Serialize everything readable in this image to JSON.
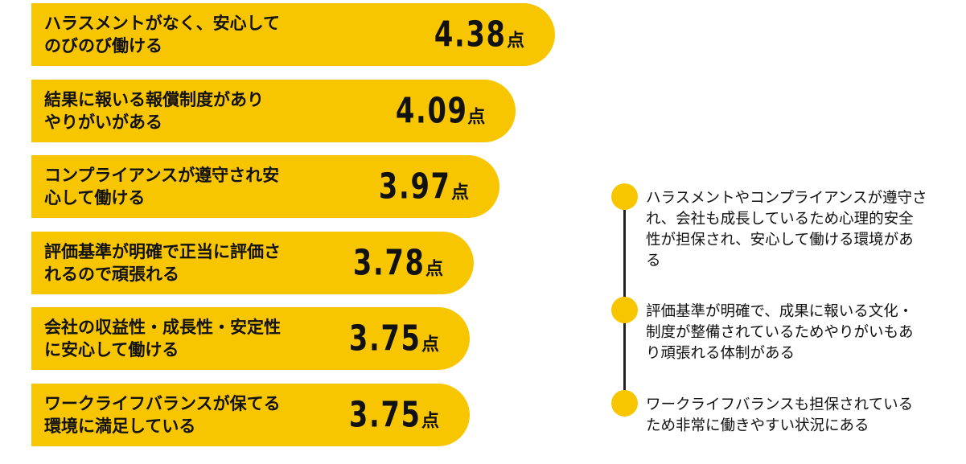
{
  "chart_data": {
    "type": "bar",
    "orientation": "horizontal",
    "unit": "点",
    "categories": [
      "ハラスメントがなく、安心してのびのび働ける",
      "結果に報いる報償制度がありやりがいがある",
      "コンプライアンスが遵守され安心して働ける",
      "評価基準が明確で正当に評価されるので頑張れる",
      "会社の収益性・成長性・安定性に安心して働ける",
      "ワークライフバランスが保てる環境に満足している"
    ],
    "values": [
      4.38,
      4.09,
      3.97,
      3.78,
      3.75,
      3.75
    ],
    "value_labels": [
      "4.38",
      "4.09",
      "3.97",
      "3.78",
      "3.75",
      "3.75"
    ],
    "bar_color": "#f7c600"
  },
  "bars": [
    {
      "label_line1": "ハラスメントがなく、安心して",
      "label_line2": "のびのび働ける"
    },
    {
      "label_line1": "結果に報いる報償制度があり",
      "label_line2": "やりがいがある"
    },
    {
      "label_line1": "コンプライアンスが遵守され安",
      "label_line2": "心して働ける"
    },
    {
      "label_line1": "評価基準が明確で正当に評価さ",
      "label_line2": "れるので頑張れる"
    },
    {
      "label_line1": "会社の収益性・成長性・安定性",
      "label_line2": "に安心して働ける"
    },
    {
      "label_line1": "ワークライフバランスが保てる",
      "label_line2": "環境に満足している"
    }
  ],
  "timeline": {
    "dot_color": "#f7c600",
    "line_color": "#222222",
    "items": [
      {
        "text": "ハラスメントやコンプライアンスが遵守され、会社も成長しているため心理的安全性が担保され、安心して働ける環境がある"
      },
      {
        "text": "評価基準が明確で、成果に報いる文化・制度が整備されているためやりがいもあり頑張れる体制がある"
      },
      {
        "text": "ワークライフバランスも担保されているため非常に働きやすい状況にある"
      }
    ]
  }
}
